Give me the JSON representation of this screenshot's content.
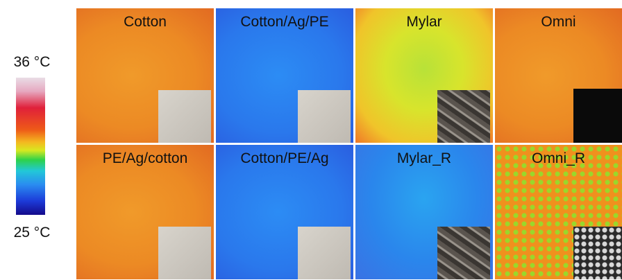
{
  "colorbar": {
    "max_label": "36 °C",
    "min_label": "25 °C"
  },
  "panels": [
    {
      "label": "Cotton"
    },
    {
      "label": "Cotton/Ag/PE"
    },
    {
      "label": "Mylar"
    },
    {
      "label": "Omni"
    },
    {
      "label": "PE/Ag/cotton"
    },
    {
      "label": "Cotton/PE/Ag"
    },
    {
      "label": "Mylar_R"
    },
    {
      "label": "Omni_R"
    }
  ]
}
